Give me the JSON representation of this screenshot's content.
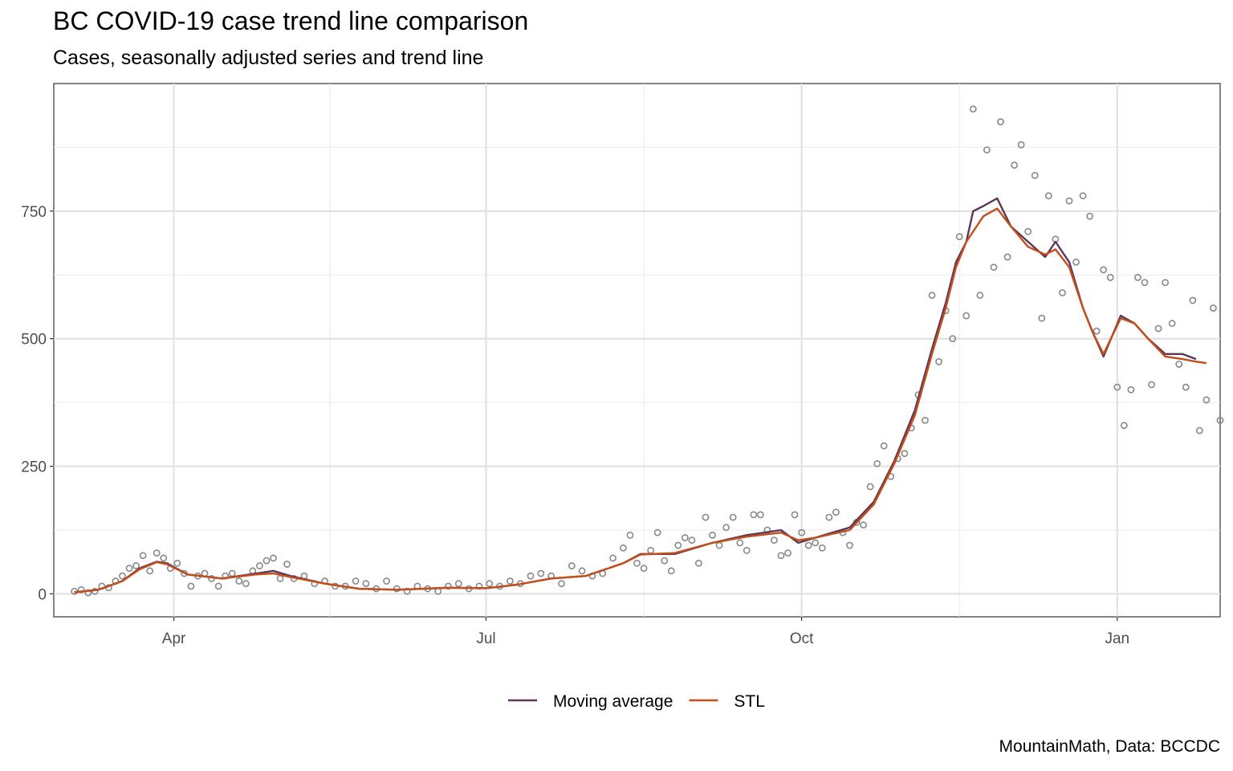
{
  "chart_data": {
    "type": "line",
    "title": "BC COVID-19 case trend line comparison",
    "subtitle": "Cases, seasonally adjusted series and trend line",
    "caption": "MountainMath, Data: BCCDC",
    "xlabel": "",
    "ylabel": "",
    "x_axis": {
      "type": "date",
      "range": [
        "2020-02-26",
        "2021-01-31"
      ],
      "ticks": [
        {
          "date": "2020-04-01",
          "label": "Apr"
        },
        {
          "date": "2020-07-01",
          "label": "Jul"
        },
        {
          "date": "2020-10-01",
          "label": "Oct"
        },
        {
          "date": "2021-01-01",
          "label": "Jan"
        }
      ]
    },
    "y_axis": {
      "range": [
        -45,
        1000
      ],
      "ticks": [
        0,
        250,
        500,
        750
      ],
      "tick_labels": [
        "0",
        "250",
        "500",
        "750"
      ]
    },
    "grid": true,
    "legend_position": "bottom",
    "series": [
      {
        "name": "Moving average",
        "color": "#5b3858",
        "points": [
          [
            "2020-03-03",
            3
          ],
          [
            "2020-03-10",
            8
          ],
          [
            "2020-03-17",
            25
          ],
          [
            "2020-03-22",
            50
          ],
          [
            "2020-03-27",
            63
          ],
          [
            "2020-03-30",
            60
          ],
          [
            "2020-04-05",
            38
          ],
          [
            "2020-04-15",
            30
          ],
          [
            "2020-04-25",
            40
          ],
          [
            "2020-04-30",
            45
          ],
          [
            "2020-05-05",
            35
          ],
          [
            "2020-05-15",
            20
          ],
          [
            "2020-05-25",
            10
          ],
          [
            "2020-06-05",
            8
          ],
          [
            "2020-06-20",
            12
          ],
          [
            "2020-07-01",
            11
          ],
          [
            "2020-07-10",
            18
          ],
          [
            "2020-07-20",
            30
          ],
          [
            "2020-07-30",
            35
          ],
          [
            "2020-08-10",
            60
          ],
          [
            "2020-08-15",
            78
          ],
          [
            "2020-08-25",
            78
          ],
          [
            "2020-09-05",
            100
          ],
          [
            "2020-09-15",
            115
          ],
          [
            "2020-09-25",
            125
          ],
          [
            "2020-09-30",
            100
          ],
          [
            "2020-10-05",
            110
          ],
          [
            "2020-10-15",
            130
          ],
          [
            "2020-10-22",
            180
          ],
          [
            "2020-10-28",
            260
          ],
          [
            "2020-11-03",
            360
          ],
          [
            "2020-11-08",
            480
          ],
          [
            "2020-11-12",
            570
          ],
          [
            "2020-11-15",
            650
          ],
          [
            "2020-11-18",
            690
          ],
          [
            "2020-11-20",
            750
          ],
          [
            "2020-11-23",
            760
          ],
          [
            "2020-11-27",
            775
          ],
          [
            "2020-12-01",
            720
          ],
          [
            "2020-12-06",
            690
          ],
          [
            "2020-12-11",
            660
          ],
          [
            "2020-12-14",
            690
          ],
          [
            "2020-12-18",
            650
          ],
          [
            "2020-12-22",
            560
          ],
          [
            "2020-12-25",
            510
          ],
          [
            "2020-12-28",
            465
          ],
          [
            "2021-01-02",
            545
          ],
          [
            "2021-01-06",
            530
          ],
          [
            "2021-01-10",
            500
          ],
          [
            "2021-01-15",
            470
          ],
          [
            "2021-01-20",
            470
          ],
          [
            "2021-01-24",
            460
          ]
        ]
      },
      {
        "name": "STL",
        "color": "#c44d1a",
        "points": [
          [
            "2020-03-03",
            3
          ],
          [
            "2020-03-10",
            8
          ],
          [
            "2020-03-17",
            25
          ],
          [
            "2020-03-22",
            48
          ],
          [
            "2020-03-27",
            62
          ],
          [
            "2020-03-30",
            58
          ],
          [
            "2020-04-05",
            38
          ],
          [
            "2020-04-15",
            30
          ],
          [
            "2020-04-25",
            38
          ],
          [
            "2020-04-30",
            40
          ],
          [
            "2020-05-05",
            33
          ],
          [
            "2020-05-15",
            20
          ],
          [
            "2020-05-25",
            10
          ],
          [
            "2020-06-05",
            8
          ],
          [
            "2020-06-20",
            12
          ],
          [
            "2020-07-01",
            11
          ],
          [
            "2020-07-10",
            18
          ],
          [
            "2020-07-20",
            30
          ],
          [
            "2020-07-30",
            35
          ],
          [
            "2020-08-10",
            60
          ],
          [
            "2020-08-15",
            77
          ],
          [
            "2020-08-25",
            80
          ],
          [
            "2020-09-05",
            100
          ],
          [
            "2020-09-15",
            112
          ],
          [
            "2020-09-25",
            120
          ],
          [
            "2020-09-30",
            105
          ],
          [
            "2020-10-05",
            110
          ],
          [
            "2020-10-15",
            125
          ],
          [
            "2020-10-22",
            175
          ],
          [
            "2020-10-28",
            255
          ],
          [
            "2020-11-03",
            350
          ],
          [
            "2020-11-08",
            470
          ],
          [
            "2020-11-12",
            560
          ],
          [
            "2020-11-15",
            640
          ],
          [
            "2020-11-18",
            690
          ],
          [
            "2020-11-23",
            740
          ],
          [
            "2020-11-27",
            755
          ],
          [
            "2020-12-01",
            720
          ],
          [
            "2020-12-06",
            680
          ],
          [
            "2020-12-11",
            665
          ],
          [
            "2020-12-14",
            675
          ],
          [
            "2020-12-18",
            640
          ],
          [
            "2020-12-22",
            560
          ],
          [
            "2020-12-25",
            510
          ],
          [
            "2020-12-28",
            470
          ],
          [
            "2021-01-02",
            540
          ],
          [
            "2021-01-06",
            530
          ],
          [
            "2021-01-10",
            500
          ],
          [
            "2021-01-15",
            465
          ],
          [
            "2021-01-20",
            460
          ],
          [
            "2021-01-24",
            455
          ],
          [
            "2021-01-27",
            452
          ]
        ]
      },
      {
        "name": "",
        "kind": "points",
        "color": "#888888",
        "points": [
          [
            "2020-03-03",
            5
          ],
          [
            "2020-03-05",
            8
          ],
          [
            "2020-03-07",
            2
          ],
          [
            "2020-03-09",
            5
          ],
          [
            "2020-03-11",
            15
          ],
          [
            "2020-03-13",
            12
          ],
          [
            "2020-03-15",
            25
          ],
          [
            "2020-03-17",
            35
          ],
          [
            "2020-03-19",
            50
          ],
          [
            "2020-03-21",
            55
          ],
          [
            "2020-03-23",
            75
          ],
          [
            "2020-03-25",
            45
          ],
          [
            "2020-03-27",
            80
          ],
          [
            "2020-03-29",
            70
          ],
          [
            "2020-03-31",
            50
          ],
          [
            "2020-04-02",
            60
          ],
          [
            "2020-04-04",
            40
          ],
          [
            "2020-04-06",
            15
          ],
          [
            "2020-04-08",
            35
          ],
          [
            "2020-04-10",
            40
          ],
          [
            "2020-04-12",
            30
          ],
          [
            "2020-04-14",
            15
          ],
          [
            "2020-04-16",
            35
          ],
          [
            "2020-04-18",
            40
          ],
          [
            "2020-04-20",
            25
          ],
          [
            "2020-04-22",
            20
          ],
          [
            "2020-04-24",
            45
          ],
          [
            "2020-04-26",
            55
          ],
          [
            "2020-04-28",
            65
          ],
          [
            "2020-04-30",
            70
          ],
          [
            "2020-05-02",
            30
          ],
          [
            "2020-05-04",
            58
          ],
          [
            "2020-05-06",
            30
          ],
          [
            "2020-05-09",
            35
          ],
          [
            "2020-05-12",
            20
          ],
          [
            "2020-05-15",
            25
          ],
          [
            "2020-05-18",
            15
          ],
          [
            "2020-05-21",
            15
          ],
          [
            "2020-05-24",
            25
          ],
          [
            "2020-05-27",
            20
          ],
          [
            "2020-05-30",
            10
          ],
          [
            "2020-06-02",
            25
          ],
          [
            "2020-06-05",
            10
          ],
          [
            "2020-06-08",
            5
          ],
          [
            "2020-06-11",
            15
          ],
          [
            "2020-06-14",
            10
          ],
          [
            "2020-06-17",
            5
          ],
          [
            "2020-06-20",
            15
          ],
          [
            "2020-06-23",
            20
          ],
          [
            "2020-06-26",
            10
          ],
          [
            "2020-06-29",
            15
          ],
          [
            "2020-07-02",
            20
          ],
          [
            "2020-07-05",
            15
          ],
          [
            "2020-07-08",
            25
          ],
          [
            "2020-07-11",
            20
          ],
          [
            "2020-07-14",
            35
          ],
          [
            "2020-07-17",
            40
          ],
          [
            "2020-07-20",
            35
          ],
          [
            "2020-07-23",
            20
          ],
          [
            "2020-07-26",
            55
          ],
          [
            "2020-07-29",
            45
          ],
          [
            "2020-08-01",
            35
          ],
          [
            "2020-08-04",
            40
          ],
          [
            "2020-08-07",
            70
          ],
          [
            "2020-08-10",
            90
          ],
          [
            "2020-08-12",
            115
          ],
          [
            "2020-08-14",
            60
          ],
          [
            "2020-08-16",
            50
          ],
          [
            "2020-08-18",
            85
          ],
          [
            "2020-08-20",
            120
          ],
          [
            "2020-08-22",
            65
          ],
          [
            "2020-08-24",
            45
          ],
          [
            "2020-08-26",
            95
          ],
          [
            "2020-08-28",
            110
          ],
          [
            "2020-08-30",
            105
          ],
          [
            "2020-09-01",
            60
          ],
          [
            "2020-09-03",
            150
          ],
          [
            "2020-09-05",
            115
          ],
          [
            "2020-09-07",
            95
          ],
          [
            "2020-09-09",
            130
          ],
          [
            "2020-09-11",
            150
          ],
          [
            "2020-09-13",
            100
          ],
          [
            "2020-09-15",
            85
          ],
          [
            "2020-09-17",
            155
          ],
          [
            "2020-09-19",
            155
          ],
          [
            "2020-09-21",
            125
          ],
          [
            "2020-09-23",
            105
          ],
          [
            "2020-09-25",
            75
          ],
          [
            "2020-09-27",
            80
          ],
          [
            "2020-09-29",
            155
          ],
          [
            "2020-10-01",
            120
          ],
          [
            "2020-10-03",
            95
          ],
          [
            "2020-10-05",
            100
          ],
          [
            "2020-10-07",
            90
          ],
          [
            "2020-10-09",
            150
          ],
          [
            "2020-10-11",
            160
          ],
          [
            "2020-10-13",
            120
          ],
          [
            "2020-10-15",
            95
          ],
          [
            "2020-10-17",
            140
          ],
          [
            "2020-10-19",
            135
          ],
          [
            "2020-10-21",
            210
          ],
          [
            "2020-10-23",
            255
          ],
          [
            "2020-10-25",
            290
          ],
          [
            "2020-10-27",
            230
          ],
          [
            "2020-10-29",
            265
          ],
          [
            "2020-10-31",
            275
          ],
          [
            "2020-11-02",
            325
          ],
          [
            "2020-11-04",
            390
          ],
          [
            "2020-11-06",
            340
          ],
          [
            "2020-11-08",
            585
          ],
          [
            "2020-11-10",
            455
          ],
          [
            "2020-11-12",
            555
          ],
          [
            "2020-11-14",
            500
          ],
          [
            "2020-11-16",
            700
          ],
          [
            "2020-11-18",
            545
          ],
          [
            "2020-11-20",
            950
          ],
          [
            "2020-11-22",
            585
          ],
          [
            "2020-11-24",
            870
          ],
          [
            "2020-11-26",
            640
          ],
          [
            "2020-11-28",
            925
          ],
          [
            "2020-11-30",
            660
          ],
          [
            "2020-12-02",
            840
          ],
          [
            "2020-12-04",
            880
          ],
          [
            "2020-12-06",
            710
          ],
          [
            "2020-12-08",
            820
          ],
          [
            "2020-12-10",
            540
          ],
          [
            "2020-12-12",
            780
          ],
          [
            "2020-12-14",
            695
          ],
          [
            "2020-12-16",
            590
          ],
          [
            "2020-12-18",
            770
          ],
          [
            "2020-12-20",
            650
          ],
          [
            "2020-12-22",
            780
          ],
          [
            "2020-12-24",
            740
          ],
          [
            "2020-12-26",
            515
          ],
          [
            "2020-12-28",
            635
          ],
          [
            "2020-12-30",
            620
          ],
          [
            "2021-01-01",
            405
          ],
          [
            "2021-01-03",
            330
          ],
          [
            "2021-01-05",
            400
          ],
          [
            "2021-01-07",
            620
          ],
          [
            "2021-01-09",
            610
          ],
          [
            "2021-01-11",
            410
          ],
          [
            "2021-01-13",
            520
          ],
          [
            "2021-01-15",
            610
          ],
          [
            "2021-01-17",
            530
          ],
          [
            "2021-01-19",
            450
          ],
          [
            "2021-01-21",
            405
          ],
          [
            "2021-01-23",
            575
          ],
          [
            "2021-01-25",
            320
          ],
          [
            "2021-01-27",
            380
          ],
          [
            "2021-01-29",
            560
          ],
          [
            "2021-01-31",
            340
          ]
        ]
      }
    ]
  }
}
